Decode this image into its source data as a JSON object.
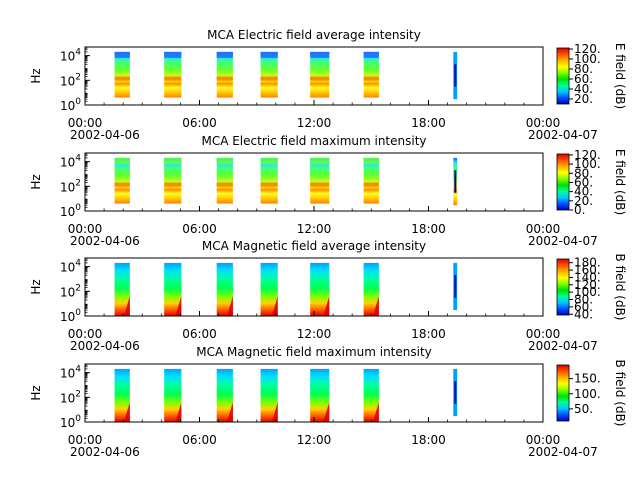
{
  "chart_data": [
    {
      "type": "heatmap",
      "title": "MCA  Electric field average intensity",
      "ylabel": "Hz",
      "yscale": "log",
      "ylim": [
        1,
        50000
      ],
      "y_ticks": [
        {
          "base": "10",
          "exp": "0"
        },
        {
          "base": "10",
          "exp": "2"
        },
        {
          "base": "10",
          "exp": "4"
        }
      ],
      "x_ticks": [
        "00:00",
        "06:00",
        "12:00",
        "18:00",
        "00:00"
      ],
      "x_dates": [
        "2002-04-06",
        "2002-04-07"
      ],
      "colorbar_label": "E field (dB)",
      "colorbar_ticks": [
        "20.",
        "40.",
        "60.",
        "80.",
        "100.",
        "120."
      ],
      "colorbar_range": [
        10,
        122
      ]
    },
    {
      "type": "heatmap",
      "title": "MCA  Electric field maximum intensity",
      "ylabel": "Hz",
      "yscale": "log",
      "ylim": [
        1,
        50000
      ],
      "y_ticks": [
        {
          "base": "10",
          "exp": "0"
        },
        {
          "base": "10",
          "exp": "2"
        },
        {
          "base": "10",
          "exp": "4"
        }
      ],
      "x_ticks": [
        "00:00",
        "06:00",
        "12:00",
        "18:00",
        "00:00"
      ],
      "x_dates": [
        "2002-04-06",
        "2002-04-07"
      ],
      "colorbar_label": "E field (dB)",
      "colorbar_ticks": [
        "0.",
        "20.",
        "40.",
        "60.",
        "80.",
        "100.",
        "120."
      ],
      "colorbar_range": [
        0,
        122
      ]
    },
    {
      "type": "heatmap",
      "title": "MCA  Magnetic field average intensity",
      "ylabel": "Hz",
      "yscale": "log",
      "ylim": [
        1,
        50000
      ],
      "y_ticks": [
        {
          "base": "10",
          "exp": "0"
        },
        {
          "base": "10",
          "exp": "2"
        },
        {
          "base": "10",
          "exp": "4"
        }
      ],
      "x_ticks": [
        "00:00",
        "06:00",
        "12:00",
        "18:00",
        "00:00"
      ],
      "x_dates": [
        "2002-04-06",
        "2002-04-07"
      ],
      "colorbar_label": "B field (dB)",
      "colorbar_ticks": [
        "40.",
        "60.",
        "80.",
        "100.",
        "120.",
        "140.",
        "160.",
        "180."
      ],
      "colorbar_range": [
        38,
        190
      ]
    },
    {
      "type": "heatmap",
      "title": "MCA  Magnetic field maximum intensity",
      "ylabel": "Hz",
      "yscale": "log",
      "ylim": [
        1,
        50000
      ],
      "y_ticks": [
        {
          "base": "10",
          "exp": "0"
        },
        {
          "base": "10",
          "exp": "2"
        },
        {
          "base": "10",
          "exp": "4"
        }
      ],
      "x_ticks": [
        "00:00",
        "06:00",
        "12:00",
        "18:00",
        "00:00"
      ],
      "x_dates": [
        "2002-04-06",
        "2002-04-07"
      ],
      "colorbar_label": "B field (dB)",
      "colorbar_ticks": [
        "50.",
        "100.",
        "150."
      ],
      "colorbar_range": [
        10,
        195
      ]
    }
  ],
  "colormap": [
    "#0000c8",
    "#0050ff",
    "#00c8ff",
    "#00ff96",
    "#00e000",
    "#80ff00",
    "#ffff00",
    "#ffb000",
    "#ff5000",
    "#e00000"
  ]
}
